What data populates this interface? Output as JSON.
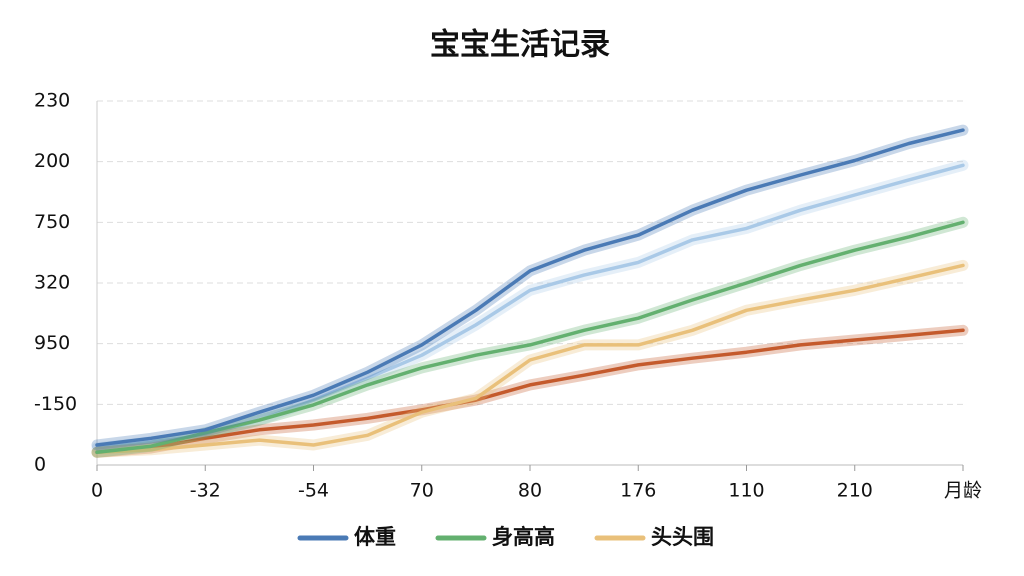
{
  "chart_data": {
    "type": "line",
    "title": "宝宝生活记录",
    "x": [
      0,
      0.5,
      1,
      1.5,
      2,
      2.5,
      3,
      3.5,
      4,
      4.5,
      5,
      5.5,
      6,
      6.5,
      7,
      7.5,
      8
    ],
    "xlim": [
      0,
      8
    ],
    "xticks": [
      {
        "value": 0,
        "label": "0"
      },
      {
        "value": 1,
        "label": "-32"
      },
      {
        "value": 2,
        "label": "-54"
      },
      {
        "value": 3,
        "label": "70"
      },
      {
        "value": 4,
        "label": "80"
      },
      {
        "value": 5,
        "label": "176"
      },
      {
        "value": 6,
        "label": "110"
      },
      {
        "value": 7,
        "label": "210"
      },
      {
        "value": 8,
        "label": "月龄"
      }
    ],
    "ylim": [
      0,
      6
    ],
    "yticks": [
      {
        "value": 0,
        "label": "0"
      },
      {
        "value": 1,
        "label": "-150"
      },
      {
        "value": 2,
        "label": "950"
      },
      {
        "value": 3,
        "label": "320"
      },
      {
        "value": 4,
        "label": "750"
      },
      {
        "value": 5,
        "label": "200"
      },
      {
        "value": 6,
        "label": "230"
      }
    ],
    "grid": true,
    "series": [
      {
        "color": "#a9c9e7",
        "values": [
          0.28,
          0.38,
          0.49,
          0.74,
          1.07,
          1.43,
          1.81,
          2.31,
          2.88,
          3.13,
          3.34,
          3.71,
          3.9,
          4.2,
          4.45,
          4.7,
          4.94
        ]
      },
      {
        "color": "#c45a2c",
        "values": [
          0.21,
          0.28,
          0.44,
          0.58,
          0.66,
          0.77,
          0.91,
          1.07,
          1.32,
          1.48,
          1.65,
          1.76,
          1.86,
          1.98,
          2.06,
          2.14,
          2.22
        ]
      },
      {
        "name": "头头围",
        "color": "#e9c07a",
        "values": [
          0.21,
          0.25,
          0.33,
          0.41,
          0.33,
          0.49,
          0.87,
          1.1,
          1.73,
          1.98,
          1.98,
          2.22,
          2.55,
          2.72,
          2.88,
          3.08,
          3.29
        ]
      },
      {
        "name": "身高高",
        "color": "#63b06f",
        "values": [
          0.21,
          0.31,
          0.53,
          0.74,
          0.99,
          1.32,
          1.6,
          1.81,
          1.98,
          2.22,
          2.42,
          2.72,
          3.0,
          3.29,
          3.54,
          3.76,
          4.0
        ]
      },
      {
        "name": "体重",
        "color": "#4a7ab5",
        "values": [
          0.33,
          0.44,
          0.58,
          0.87,
          1.15,
          1.53,
          1.98,
          2.55,
          3.2,
          3.54,
          3.79,
          4.2,
          4.53,
          4.78,
          5.02,
          5.3,
          5.52
        ]
      }
    ]
  }
}
